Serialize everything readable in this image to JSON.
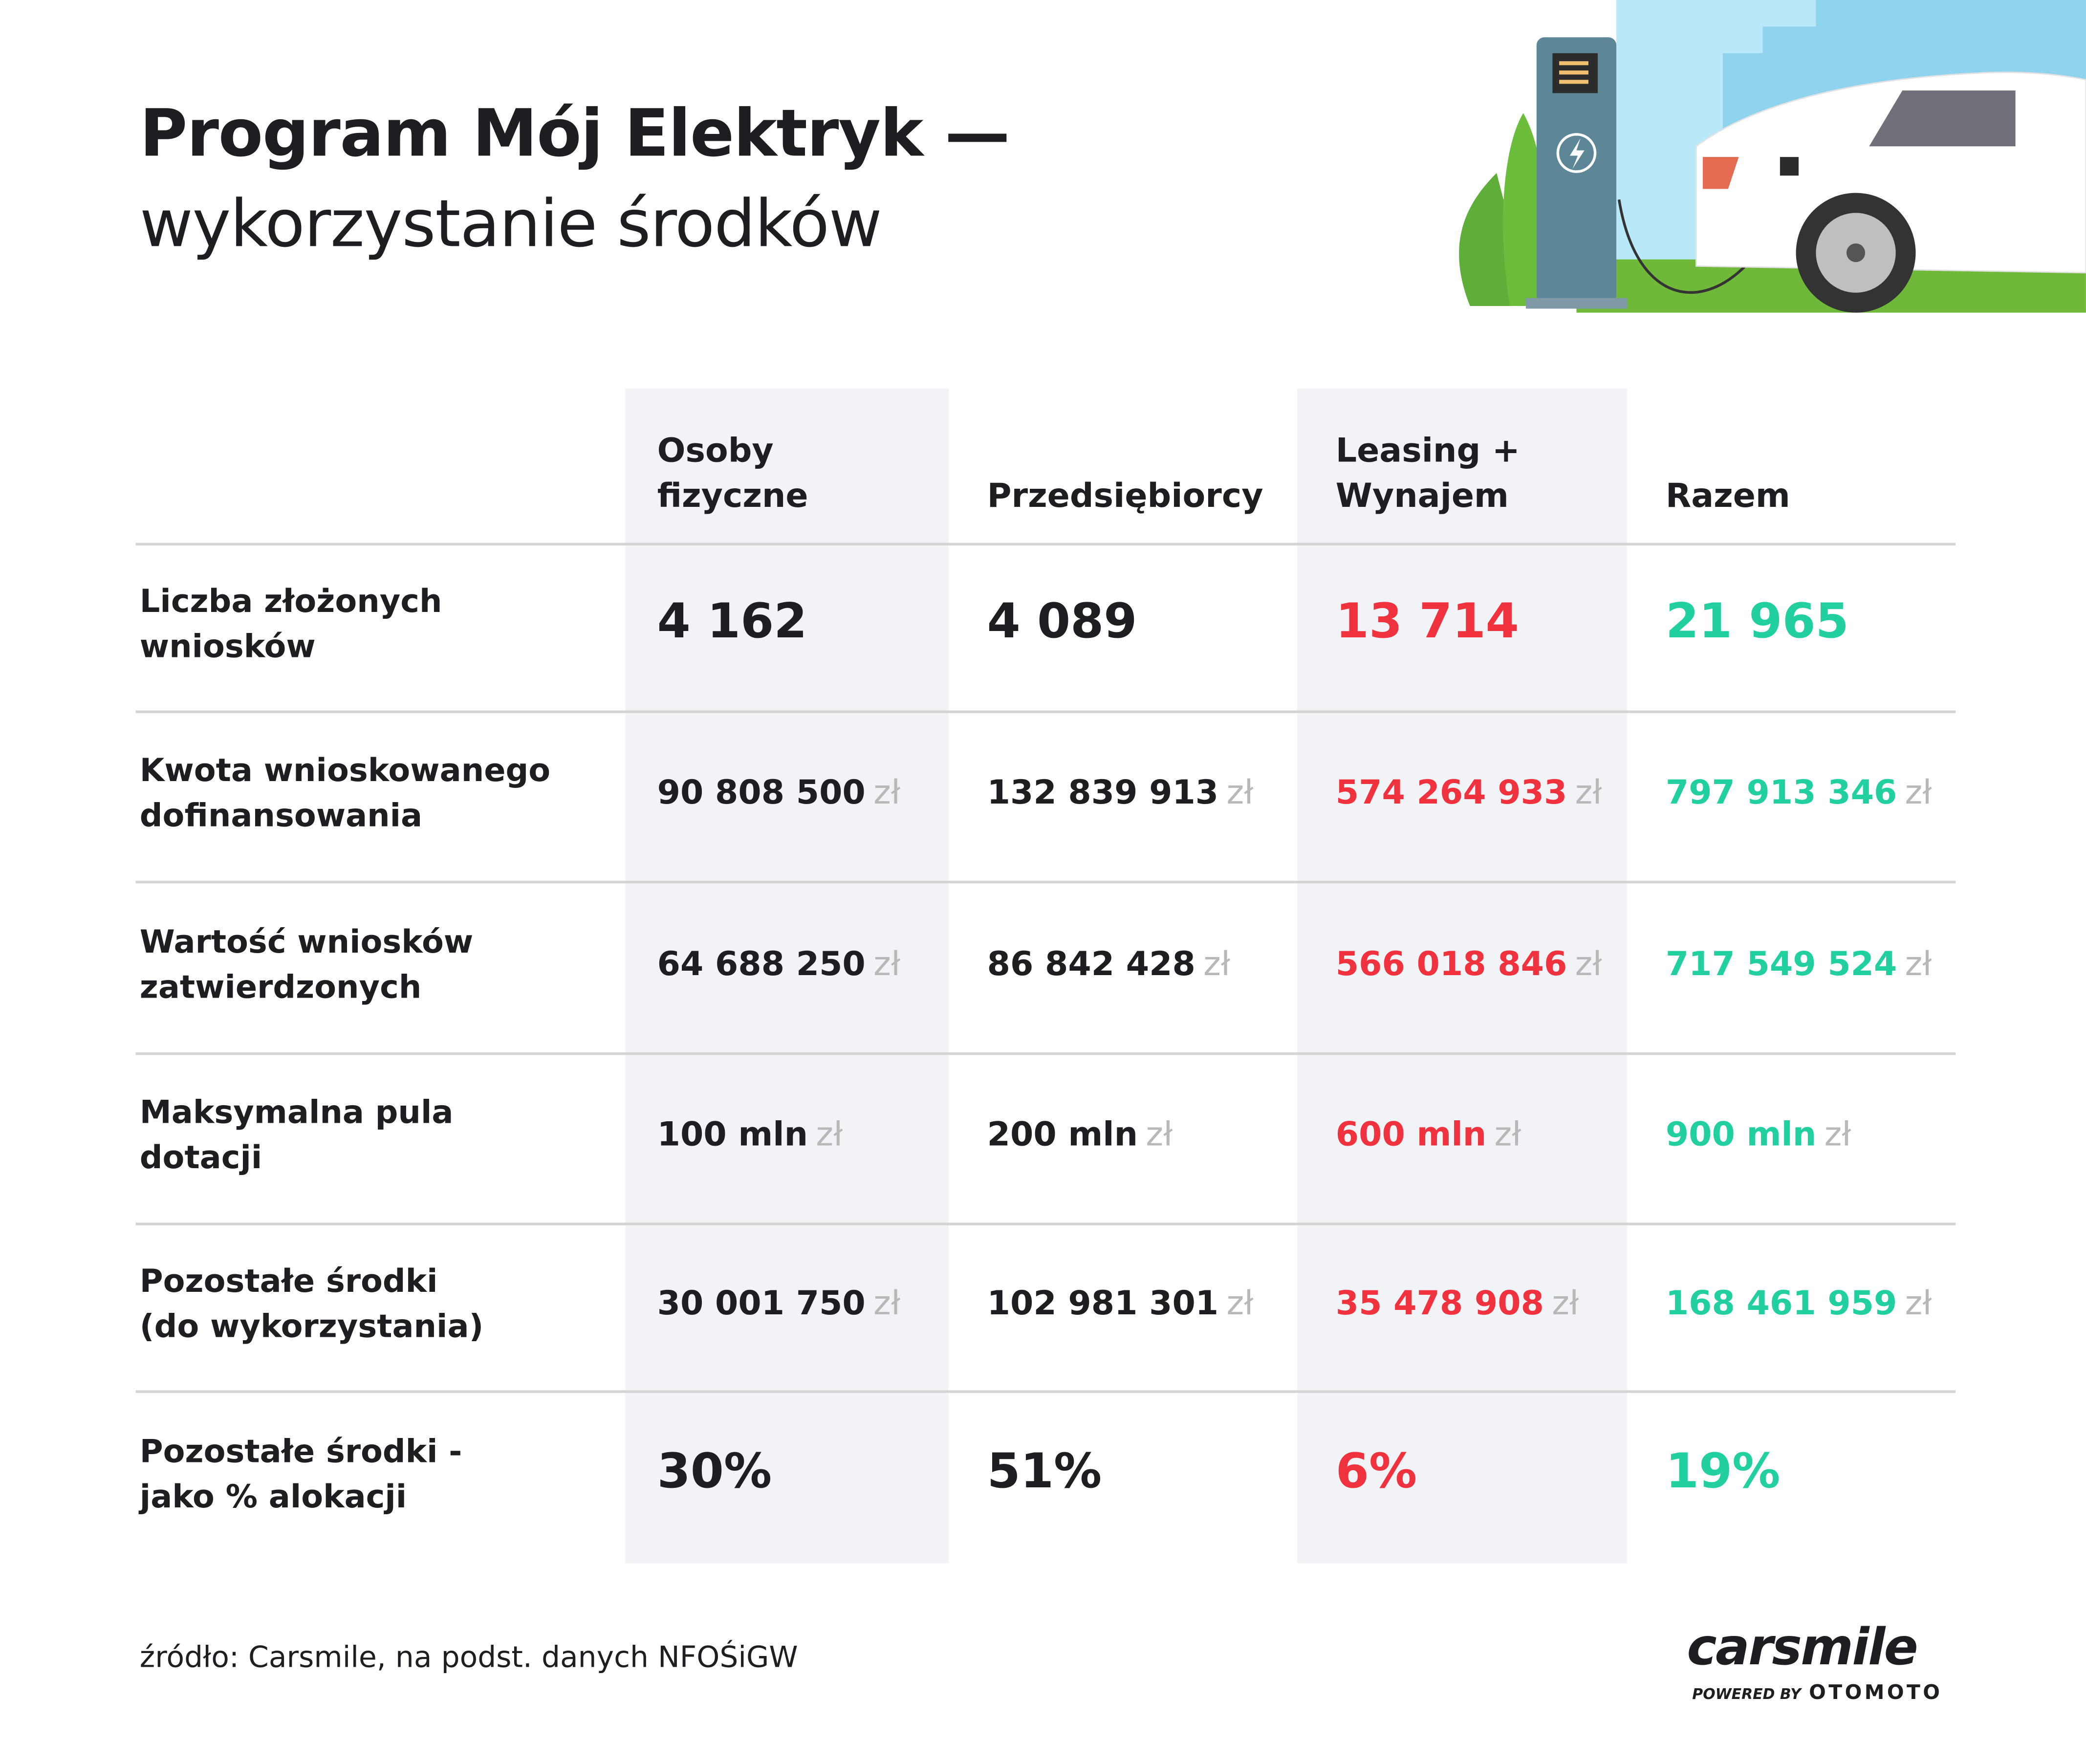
{
  "header": {
    "title": "Program Mój Elektryk —",
    "subtitle": "wykorzystanie środków"
  },
  "colors": {
    "accent_red": "#f0323f",
    "accent_green": "#22cf9e",
    "band": "#f2f3f7"
  },
  "table": {
    "columns": [
      {
        "line1": "Osoby",
        "line2": "fizyczne"
      },
      {
        "line1": "",
        "line2": "Przedsiębiorcy"
      },
      {
        "line1": "Leasing +",
        "line2": "Wynajem"
      },
      {
        "line1": "",
        "line2": "Razem"
      }
    ],
    "currency": "zł",
    "rows": [
      {
        "label1": "Liczba złożonych",
        "label2": "wniosków",
        "values": [
          "4 162",
          "4 089",
          "13 714",
          "21 965"
        ]
      },
      {
        "label1": "Kwota wnioskowanego",
        "label2": "dofinansowania",
        "values": [
          "90 808 500",
          "132 839 913",
          "574 264 933",
          "797 913 346"
        ]
      },
      {
        "label1": "Wartość wniosków",
        "label2": "zatwierdzonych",
        "values": [
          "64 688 250",
          "86 842 428",
          "566 018 846",
          "717 549 524"
        ]
      },
      {
        "label1": "Maksymalna pula",
        "label2": "dotacji",
        "values": [
          "100 mln",
          "200 mln",
          "600 mln",
          "900 mln"
        ]
      },
      {
        "label1": "Pozostałe środki",
        "label2": "(do wykorzystania)",
        "values": [
          "30 001 750",
          "102 981 301",
          "35 478 908",
          "168 461 959"
        ]
      },
      {
        "label1": "Pozostałe środki -",
        "label2": "jako % alokacji",
        "values": [
          "30%",
          "51%",
          "6%",
          "19%"
        ]
      }
    ]
  },
  "footer": {
    "source": "źródło: Carsmile, na podst. danych NFOŚiGW",
    "logo": "carsmile",
    "powered_by": "POWERED BY",
    "partner": "OTOMOTO"
  }
}
